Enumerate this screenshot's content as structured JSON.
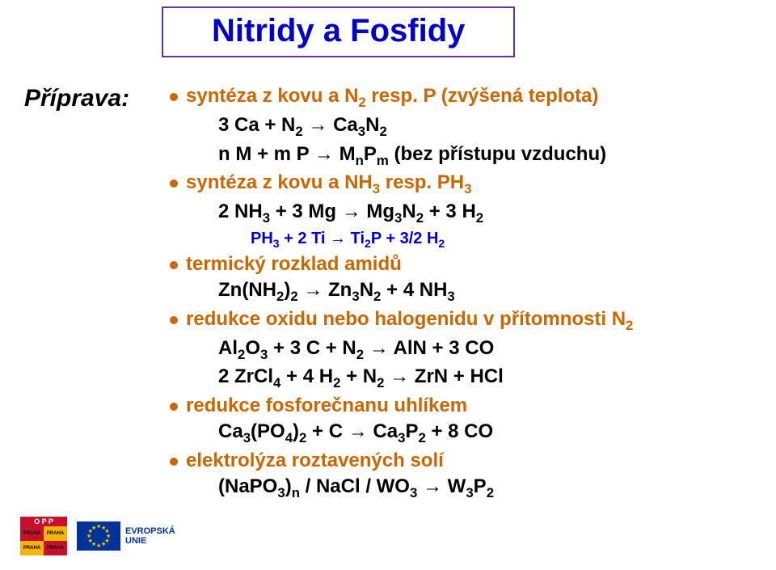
{
  "colors": {
    "title": "#0000cc",
    "title_border": "#663399",
    "subtitle": "#000000",
    "bullet_dot": "#cc6600",
    "bullet_text": "#cc6600",
    "eq_black": "#000000",
    "eq_blue": "#0000cc",
    "eu_text": "#003399"
  },
  "title": "Nitridy a Fosfidy",
  "subtitle": "Příprava:",
  "bullets": [
    {
      "text_html": "syntéza z kovu a N<sub>2</sub> resp. P (zvýšená teplota)",
      "sub": [
        {
          "html": "3 Ca + N<sub>2</sub> <span class='arr'>→</span> Ca<sub>3</sub>N<sub>2</sub>",
          "color": "eq_black",
          "size": "sz24"
        },
        {
          "html": "n M + m P <span class='arr'>→</span> M<sub>n</sub>P<sub>m</sub> (bez přístupu vzduchu)",
          "color": "eq_black",
          "size": "sz24"
        }
      ]
    },
    {
      "text_html": "syntéza z kovu a NH<sub>3</sub> resp. PH<sub>3</sub>",
      "sub": [
        {
          "html": "2 NH<sub>3</sub> + 3 Mg <span class='arr'>→</span> Mg<sub>3</sub>N<sub>2</sub> + 3 H<sub>2</sub>",
          "color": "eq_black",
          "size": "sz24"
        },
        {
          "html": "PH<sub>3</sub> + 2 Ti <span class='arr'>→</span> Ti<sub>2</sub>P + 3/2 H<sub>2</sub>",
          "color": "eq_blue",
          "size": "sz20",
          "extra_indent": true
        }
      ]
    },
    {
      "text_html": "termický rozklad amidů",
      "sub": [
        {
          "html": "Zn(NH<sub>2</sub>)<sub>2</sub> <span class='arr'>→</span> Zn<sub>3</sub>N<sub>2</sub> + 4 NH<sub>3</sub>",
          "color": "eq_black",
          "size": "sz24"
        }
      ]
    },
    {
      "text_html": "redukce oxidu nebo halogenidu v přítomnosti N<sub>2</sub>",
      "sub": [
        {
          "html": "Al<sub>2</sub>O<sub>3</sub> + 3 C + N<sub>2</sub> <span class='arr'>→</span> AlN + 3 CO",
          "color": "eq_black",
          "size": "sz24"
        },
        {
          "html": "2 ZrCl<sub>4</sub> + 4 H<sub>2</sub> + N<sub>2</sub> <span class='arr'>→</span> ZrN + HCl",
          "color": "eq_black",
          "size": "sz24"
        }
      ]
    },
    {
      "text_html": "redukce fosforečnanu uhlíkem",
      "sub": [
        {
          "html": "Ca<sub>3</sub>(PO<sub>4</sub>)<sub>2</sub> + C <span class='arr'>→</span> Ca<sub>3</sub>P<sub>2</sub> + 8 CO",
          "color": "eq_black",
          "size": "sz24"
        }
      ]
    },
    {
      "text_html": "elektrolýza roztavených solí",
      "sub": [
        {
          "html": "(NaPO<sub>3</sub>)<sub>n</sub> / NaCl / WO<sub>3</sub> <span class='arr'>→</span> W<sub>3</sub>P<sub>2</sub>",
          "color": "eq_black",
          "size": "sz24"
        }
      ]
    }
  ],
  "logos": {
    "opp_label": "O P P",
    "opp_sq": "PRAHA",
    "eu_label1": "EVROPSKÁ",
    "eu_label2": "UNIE"
  }
}
